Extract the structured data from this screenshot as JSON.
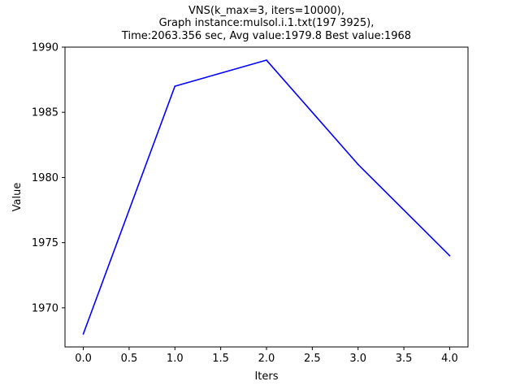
{
  "chart_data": {
    "type": "line",
    "title_lines": [
      "VNS(k_max=3, iters=10000),",
      "Graph instance:mulsol.i.1.txt(197 3925),",
      "Time:2063.356 sec, Avg value:1979.8 Best value:1968"
    ],
    "xlabel": "Iters",
    "ylabel": "Value",
    "xlim": [
      -0.2,
      4.2
    ],
    "ylim": [
      1967,
      1990
    ],
    "x_ticks": [
      0.0,
      0.5,
      1.0,
      1.5,
      2.0,
      2.5,
      3.0,
      3.5,
      4.0
    ],
    "x_tick_labels": [
      "0.0",
      "0.5",
      "1.0",
      "1.5",
      "2.0",
      "2.5",
      "3.0",
      "3.5",
      "4.0"
    ],
    "y_ticks": [
      1970,
      1975,
      1980,
      1985,
      1990
    ],
    "y_tick_labels": [
      "1970",
      "1975",
      "1980",
      "1985",
      "1990"
    ],
    "grid": false,
    "series": [
      {
        "color": "#0000ff",
        "x": [
          0,
          1,
          2,
          3,
          4
        ],
        "values": [
          1968,
          1987,
          1989,
          1981,
          1974
        ]
      }
    ]
  }
}
